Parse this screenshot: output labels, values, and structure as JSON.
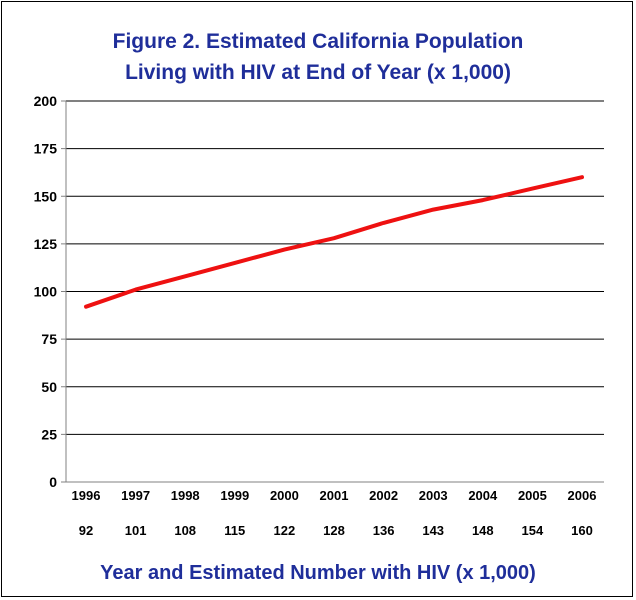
{
  "colors": {
    "title": "#1f2e9a",
    "line": "#ee1111",
    "grid": "#000000",
    "axis": "#808080"
  },
  "chart_data": {
    "type": "line",
    "title_lines": [
      "Figure 2. Estimated California Population",
      "Living with HIV at End of Year (x 1,000)"
    ],
    "xlabel": "Year and Estimated Number with HIV (x 1,000)",
    "ylabel": "",
    "categories": [
      "1996",
      "1997",
      "1998",
      "1999",
      "2000",
      "2001",
      "2002",
      "2003",
      "2004",
      "2005",
      "2006"
    ],
    "value_labels": [
      "92",
      "101",
      "108",
      "115",
      "122",
      "128",
      "136",
      "143",
      "148",
      "154",
      "160"
    ],
    "series": [
      {
        "values": [
          92,
          101,
          108,
          115,
          122,
          128,
          136,
          143,
          148,
          154,
          160
        ]
      }
    ],
    "ylim": [
      0,
      200
    ],
    "yticks": [
      0,
      25,
      50,
      75,
      100,
      125,
      150,
      175,
      200
    ],
    "grid": true,
    "legend": "none"
  }
}
